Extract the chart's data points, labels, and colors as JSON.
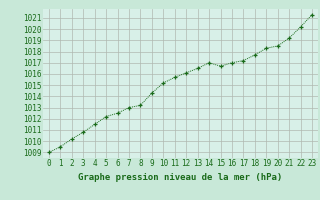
{
  "x": [
    0,
    1,
    2,
    3,
    4,
    5,
    6,
    7,
    8,
    9,
    10,
    11,
    12,
    13,
    14,
    15,
    16,
    17,
    18,
    19,
    20,
    21,
    22,
    23
  ],
  "y": [
    1009.0,
    1009.5,
    1010.2,
    1010.8,
    1011.5,
    1012.2,
    1012.5,
    1013.0,
    1013.2,
    1014.3,
    1015.2,
    1015.7,
    1016.1,
    1016.5,
    1017.0,
    1016.7,
    1017.0,
    1017.2,
    1017.7,
    1018.3,
    1018.5,
    1019.2,
    1020.2,
    1021.3
  ],
  "line_color": "#1a6b1a",
  "marker": "+",
  "bg_color": "#c8e8d8",
  "plot_bg_color": "#d8f0e8",
  "grid_color": "#b0b8b0",
  "xlabel": "Graphe pression niveau de la mer (hPa)",
  "xlabel_color": "#1a6b1a",
  "tick_color": "#1a6b1a",
  "ylim_min": 1008.5,
  "ylim_max": 1021.8,
  "xlim_min": -0.5,
  "xlim_max": 23.5,
  "yticks": [
    1009,
    1010,
    1011,
    1012,
    1013,
    1014,
    1015,
    1016,
    1017,
    1018,
    1019,
    1020,
    1021
  ],
  "xticks": [
    0,
    1,
    2,
    3,
    4,
    5,
    6,
    7,
    8,
    9,
    10,
    11,
    12,
    13,
    14,
    15,
    16,
    17,
    18,
    19,
    20,
    21,
    22,
    23
  ],
  "tick_fontsize": 5.5,
  "xlabel_fontsize": 6.5
}
